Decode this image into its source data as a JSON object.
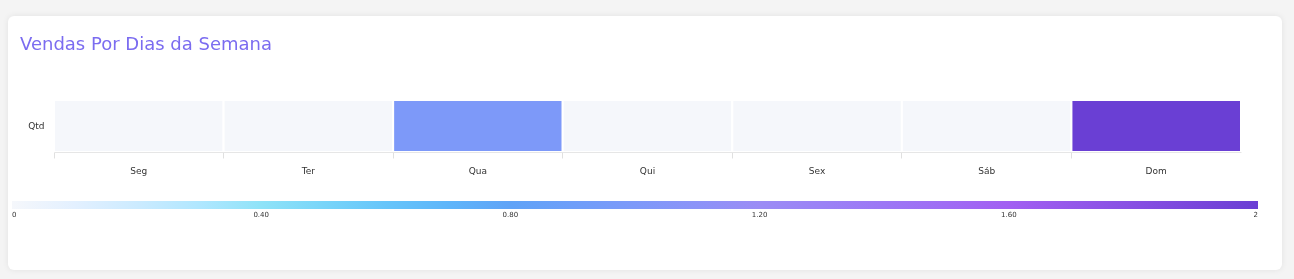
{
  "chart_data": {
    "type": "heatmap",
    "title": "Vendas Por Dias da Semana",
    "categories": [
      "Seg",
      "Ter",
      "Qua",
      "Qui",
      "Sex",
      "Sáb",
      "Dom"
    ],
    "y_categories": [
      "Qtd"
    ],
    "cells": [
      [
        0,
        0,
        1,
        0,
        0,
        0,
        2
      ]
    ],
    "clim": [
      0,
      2
    ],
    "cticks": [
      0,
      {
        "value": 0.4,
        "label": "0.40"
      },
      {
        "value": 0.8,
        "label": "0.80"
      },
      {
        "value": 1.2,
        "label": "1.20"
      },
      {
        "value": 1.6,
        "label": "1.60"
      },
      2
    ]
  }
}
